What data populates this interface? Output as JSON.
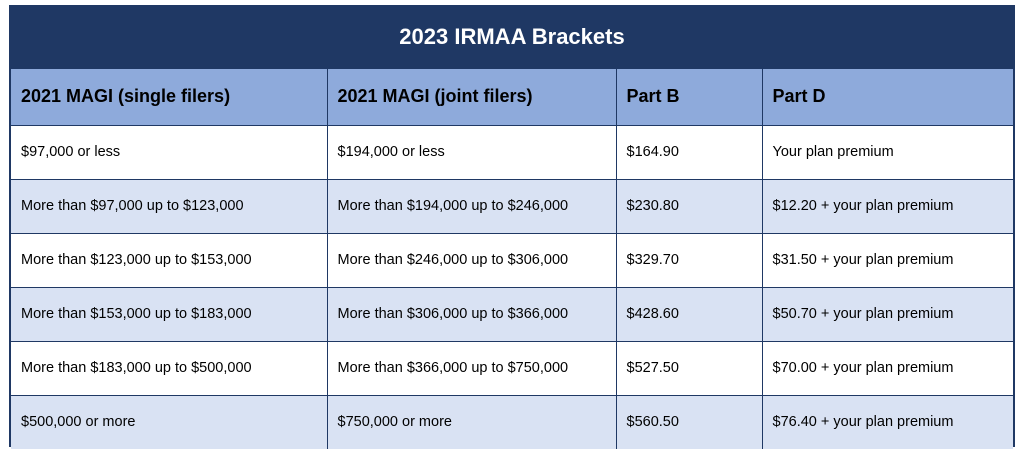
{
  "title": "2023 IRMAA Brackets",
  "columns": [
    "2021 MAGI (single filers)",
    "2021 MAGI (joint filers)",
    "Part B",
    "Part D"
  ],
  "rows": [
    [
      "$97,000 or less",
      "$194,000 or less",
      "$164.90",
      "Your plan premium"
    ],
    [
      "More than $97,000 up to $123,000",
      "More than $194,000 up to $246,000",
      "$230.80",
      "$12.20 + your plan premium"
    ],
    [
      "More than $123,000 up to $153,000",
      "More than $246,000 up to $306,000",
      "$329.70",
      "$31.50 + your plan premium"
    ],
    [
      "More than $153,000 up to $183,000",
      "More than $306,000 up to $366,000",
      "$428.60",
      "$50.70 + your plan premium"
    ],
    [
      "More than $183,000 up to $500,000",
      "More than $366,000 up to $750,000",
      "$527.50",
      "$70.00 + your plan premium"
    ],
    [
      "$500,000 or more",
      "$750,000 or more",
      "$560.50",
      "$76.40 + your plan premium"
    ]
  ],
  "colors": {
    "title_background": "#1f3864",
    "header_background": "#8eaadb",
    "row_alt_background": "#d9e2f3"
  }
}
